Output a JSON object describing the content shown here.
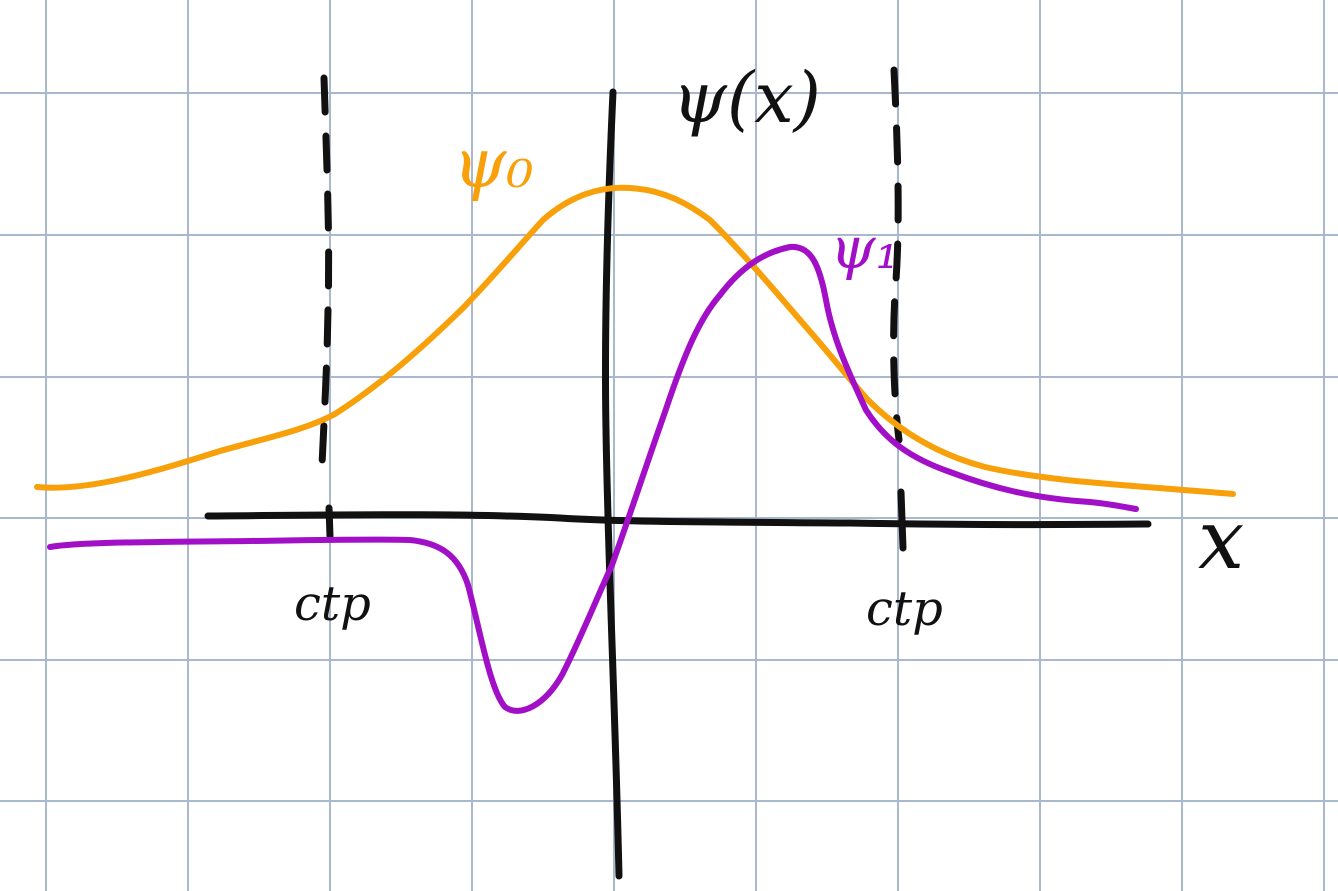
{
  "diagram": {
    "axis_labels": {
      "vertical": "ψ(x)",
      "horizontal": "x"
    },
    "curve_labels": {
      "ground_state": "ψ₀",
      "first_excited": "ψ₁"
    },
    "turning_point_labels": {
      "left": "ctp",
      "right": "ctp"
    },
    "colors": {
      "axes": "#111111",
      "ground_state_curve": "#f7a00a",
      "first_excited_curve": "#a10fc7",
      "grid": "#a9b7cf",
      "background": "#ffffff"
    }
  }
}
